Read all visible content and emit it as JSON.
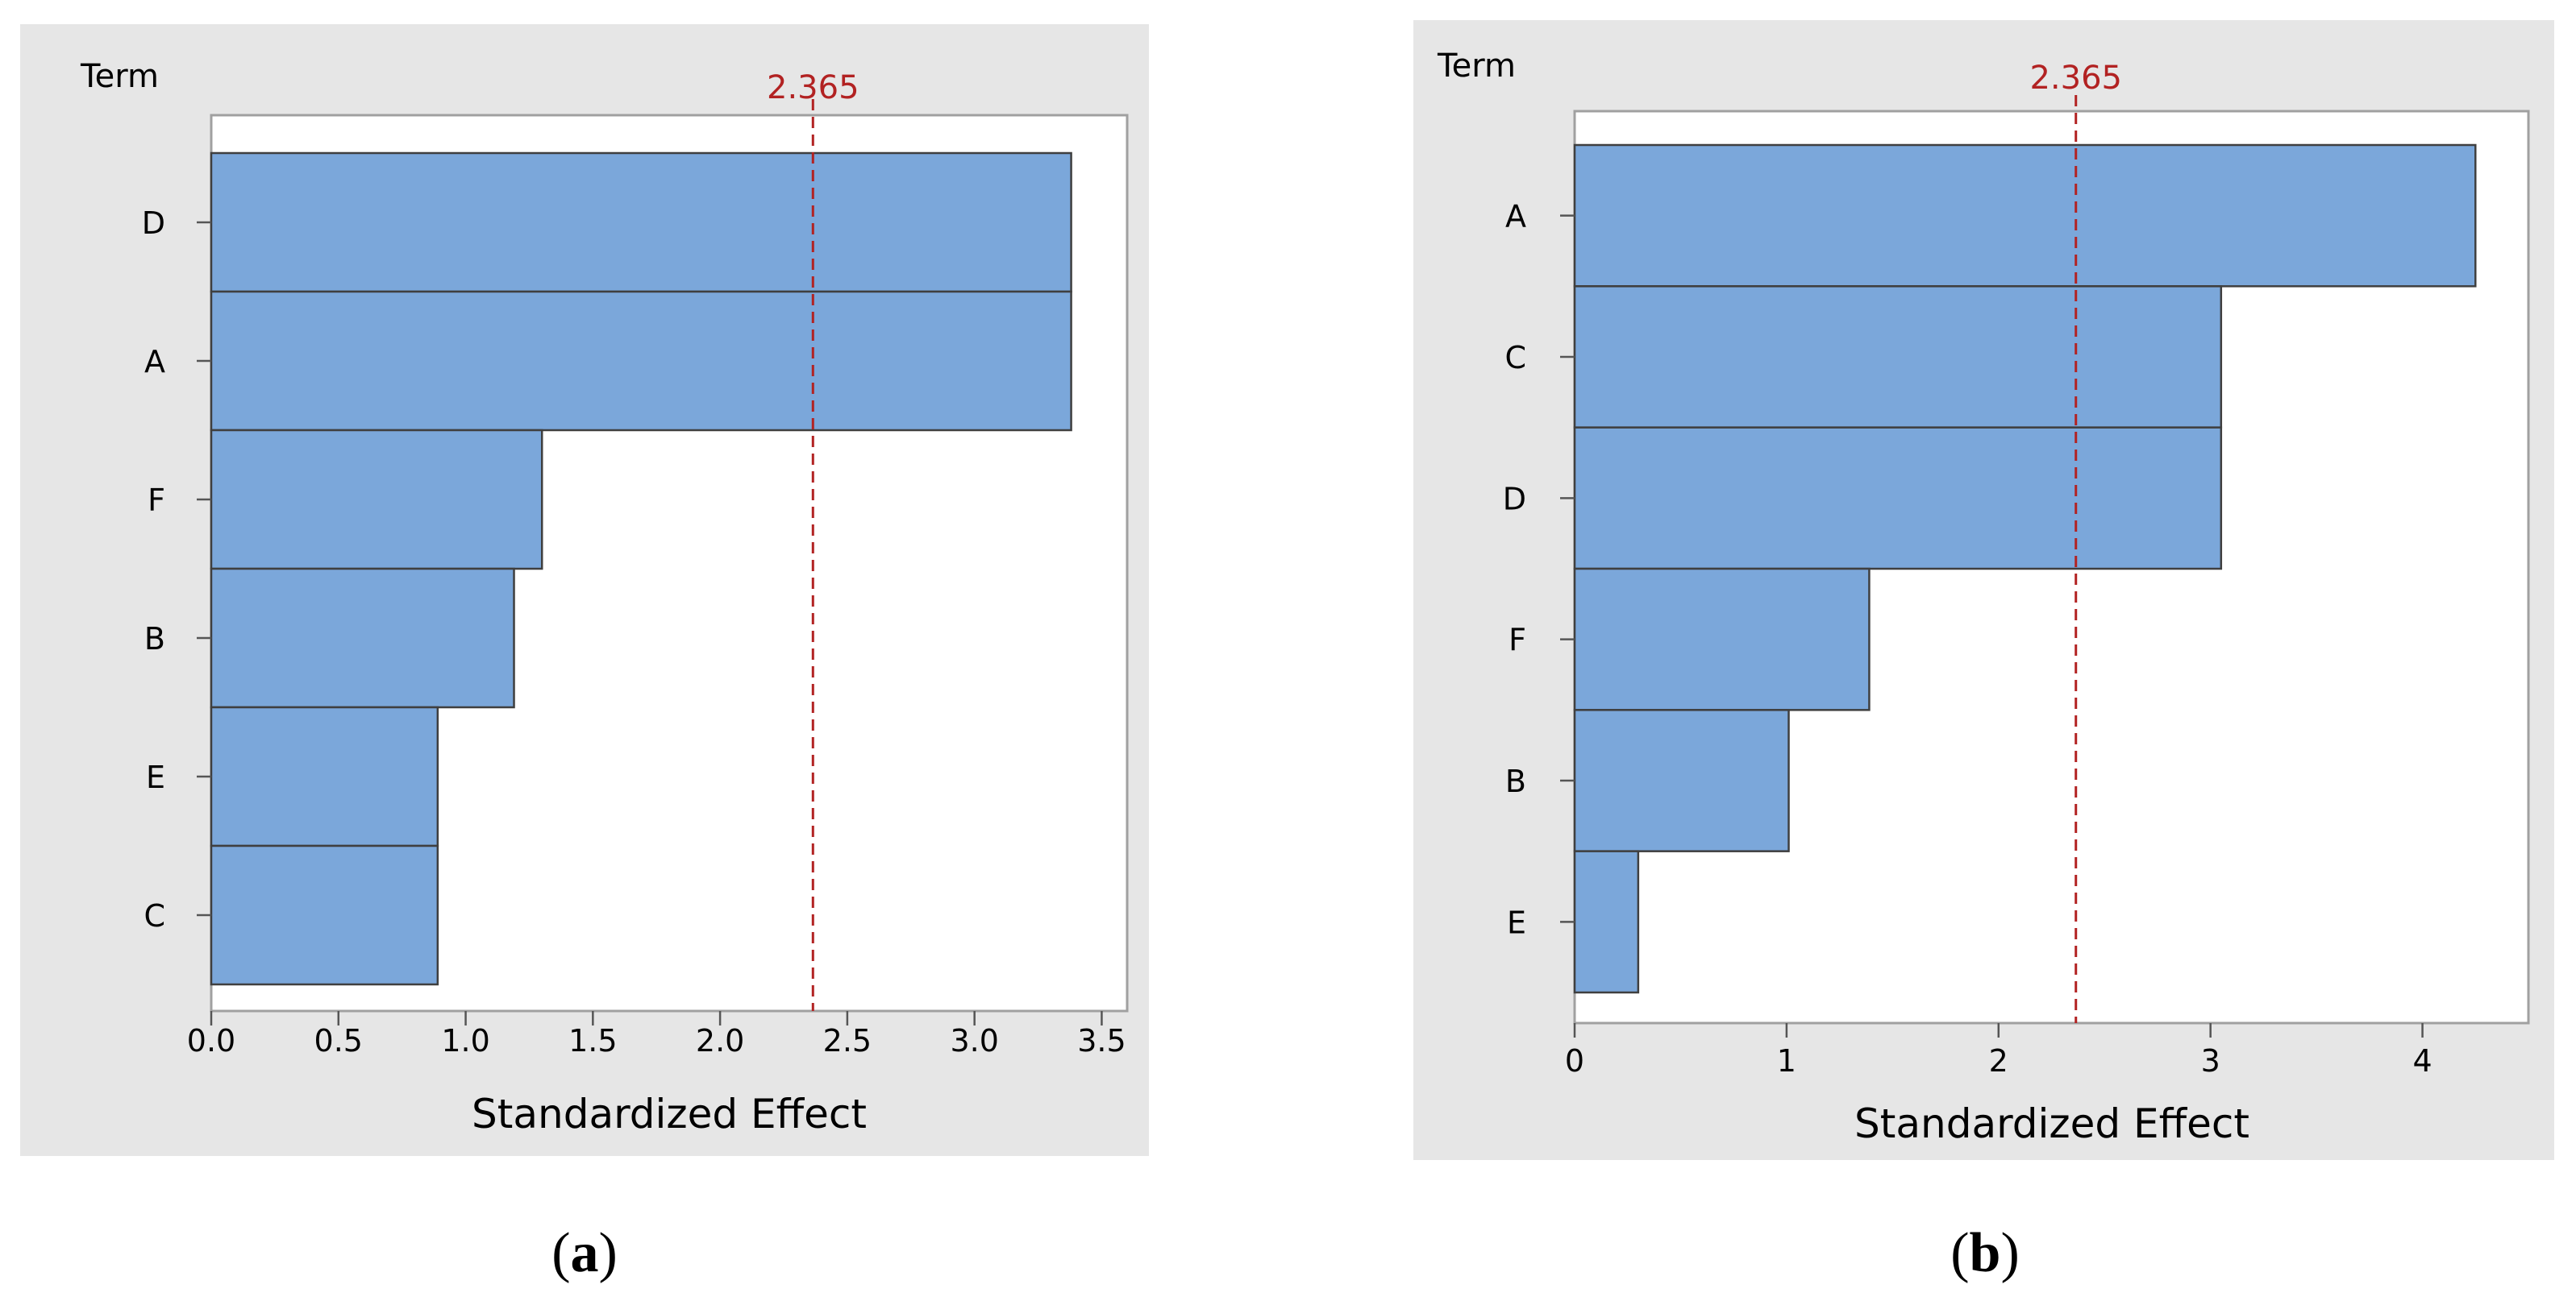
{
  "chart_data": [
    {
      "type": "bar",
      "orientation": "horizontal",
      "panel_label": "a",
      "term_header": "Term",
      "categories": [
        "D",
        "A",
        "F",
        "B",
        "E",
        "C"
      ],
      "values": [
        3.38,
        3.38,
        1.3,
        1.19,
        0.89,
        0.89
      ],
      "xlabel": "Standardized Effect",
      "xlim": [
        0,
        3.6
      ],
      "xticks": [
        0,
        0.5,
        1,
        1.5,
        2,
        2.5,
        3,
        3.5
      ],
      "xtick_labels": [
        "0.0",
        "0.5",
        "1.0",
        "1.5",
        "2.0",
        "2.5",
        "3.0",
        "3.5"
      ],
      "reference_line": {
        "value": 2.365,
        "label": "2.365",
        "color": "#B22222"
      },
      "bar_color": "#7BA7DA",
      "grid": false
    },
    {
      "type": "bar",
      "orientation": "horizontal",
      "panel_label": "b",
      "term_header": "Term",
      "categories": [
        "A",
        "C",
        "D",
        "F",
        "B",
        "E"
      ],
      "values": [
        4.25,
        3.05,
        3.05,
        1.39,
        1.01,
        0.3
      ],
      "xlabel": "Standardized Effect",
      "xlim": [
        0,
        4.5
      ],
      "xticks": [
        0,
        1,
        2,
        3,
        4
      ],
      "xtick_labels": [
        "0",
        "1",
        "2",
        "3",
        "4"
      ],
      "reference_line": {
        "value": 2.365,
        "label": "2.365",
        "color": "#B22222"
      },
      "bar_color": "#7BA7DA",
      "grid": false
    }
  ],
  "captions": [
    {
      "open": "(",
      "letter": "a",
      "close": ")"
    },
    {
      "open": "(",
      "letter": "b",
      "close": ")"
    }
  ]
}
